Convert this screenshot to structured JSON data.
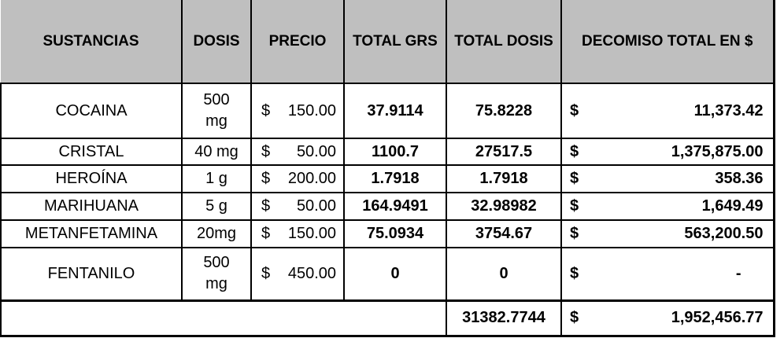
{
  "header": {
    "sustancias": "SUSTANCIAS",
    "dosis": "DOSIS",
    "precio": "PRECIO",
    "total_grs": "TOTAL GRS",
    "total_dosis": "TOTAL DOSIS",
    "decomiso": "DECOMISO TOTAL EN $"
  },
  "rows": [
    {
      "sustancia": "COCAINA",
      "dosis": "500\nmg",
      "precio": {
        "sym": "$",
        "amt": "150.00"
      },
      "total_grs": "37.9114",
      "total_dosis": "75.8228",
      "decomiso": {
        "sym": "$",
        "amt": "11,373.42"
      }
    },
    {
      "sustancia": "CRISTAL",
      "dosis": "40 mg",
      "precio": {
        "sym": "$",
        "amt": "50.00"
      },
      "total_grs": "1100.7",
      "total_dosis": "27517.5",
      "decomiso": {
        "sym": "$",
        "amt": "1,375,875.00"
      }
    },
    {
      "sustancia": "HEROÍNA",
      "dosis": "1 g",
      "precio": {
        "sym": "$",
        "amt": "200.00"
      },
      "total_grs": "1.7918",
      "total_dosis": "1.7918",
      "decomiso": {
        "sym": "$",
        "amt": "358.36"
      }
    },
    {
      "sustancia": "MARIHUANA",
      "dosis": "5 g",
      "precio": {
        "sym": "$",
        "amt": "50.00"
      },
      "total_grs": "164.9491",
      "total_dosis": "32.98982",
      "decomiso": {
        "sym": "$",
        "amt": "1,649.49"
      }
    },
    {
      "sustancia": "METANFETAMINA",
      "dosis": "20mg",
      "precio": {
        "sym": "$",
        "amt": "150.00"
      },
      "total_grs": "75.0934",
      "total_dosis": "3754.67",
      "decomiso": {
        "sym": "$",
        "amt": "563,200.50"
      }
    },
    {
      "sustancia": "FENTANILO",
      "dosis": "500\nmg",
      "precio": {
        "sym": "$",
        "amt": "450.00"
      },
      "total_grs": "0",
      "total_dosis": "0",
      "decomiso": {
        "sym": "$",
        "amt": "-"
      }
    }
  ],
  "footer": {
    "total_dosis": "31382.7744",
    "decomiso": {
      "sym": "$",
      "amt": "1,952,456.77"
    }
  },
  "colors": {
    "header_bg": "#bfbfbf",
    "border": "#000000",
    "background": "#ffffff",
    "text": "#000000"
  }
}
